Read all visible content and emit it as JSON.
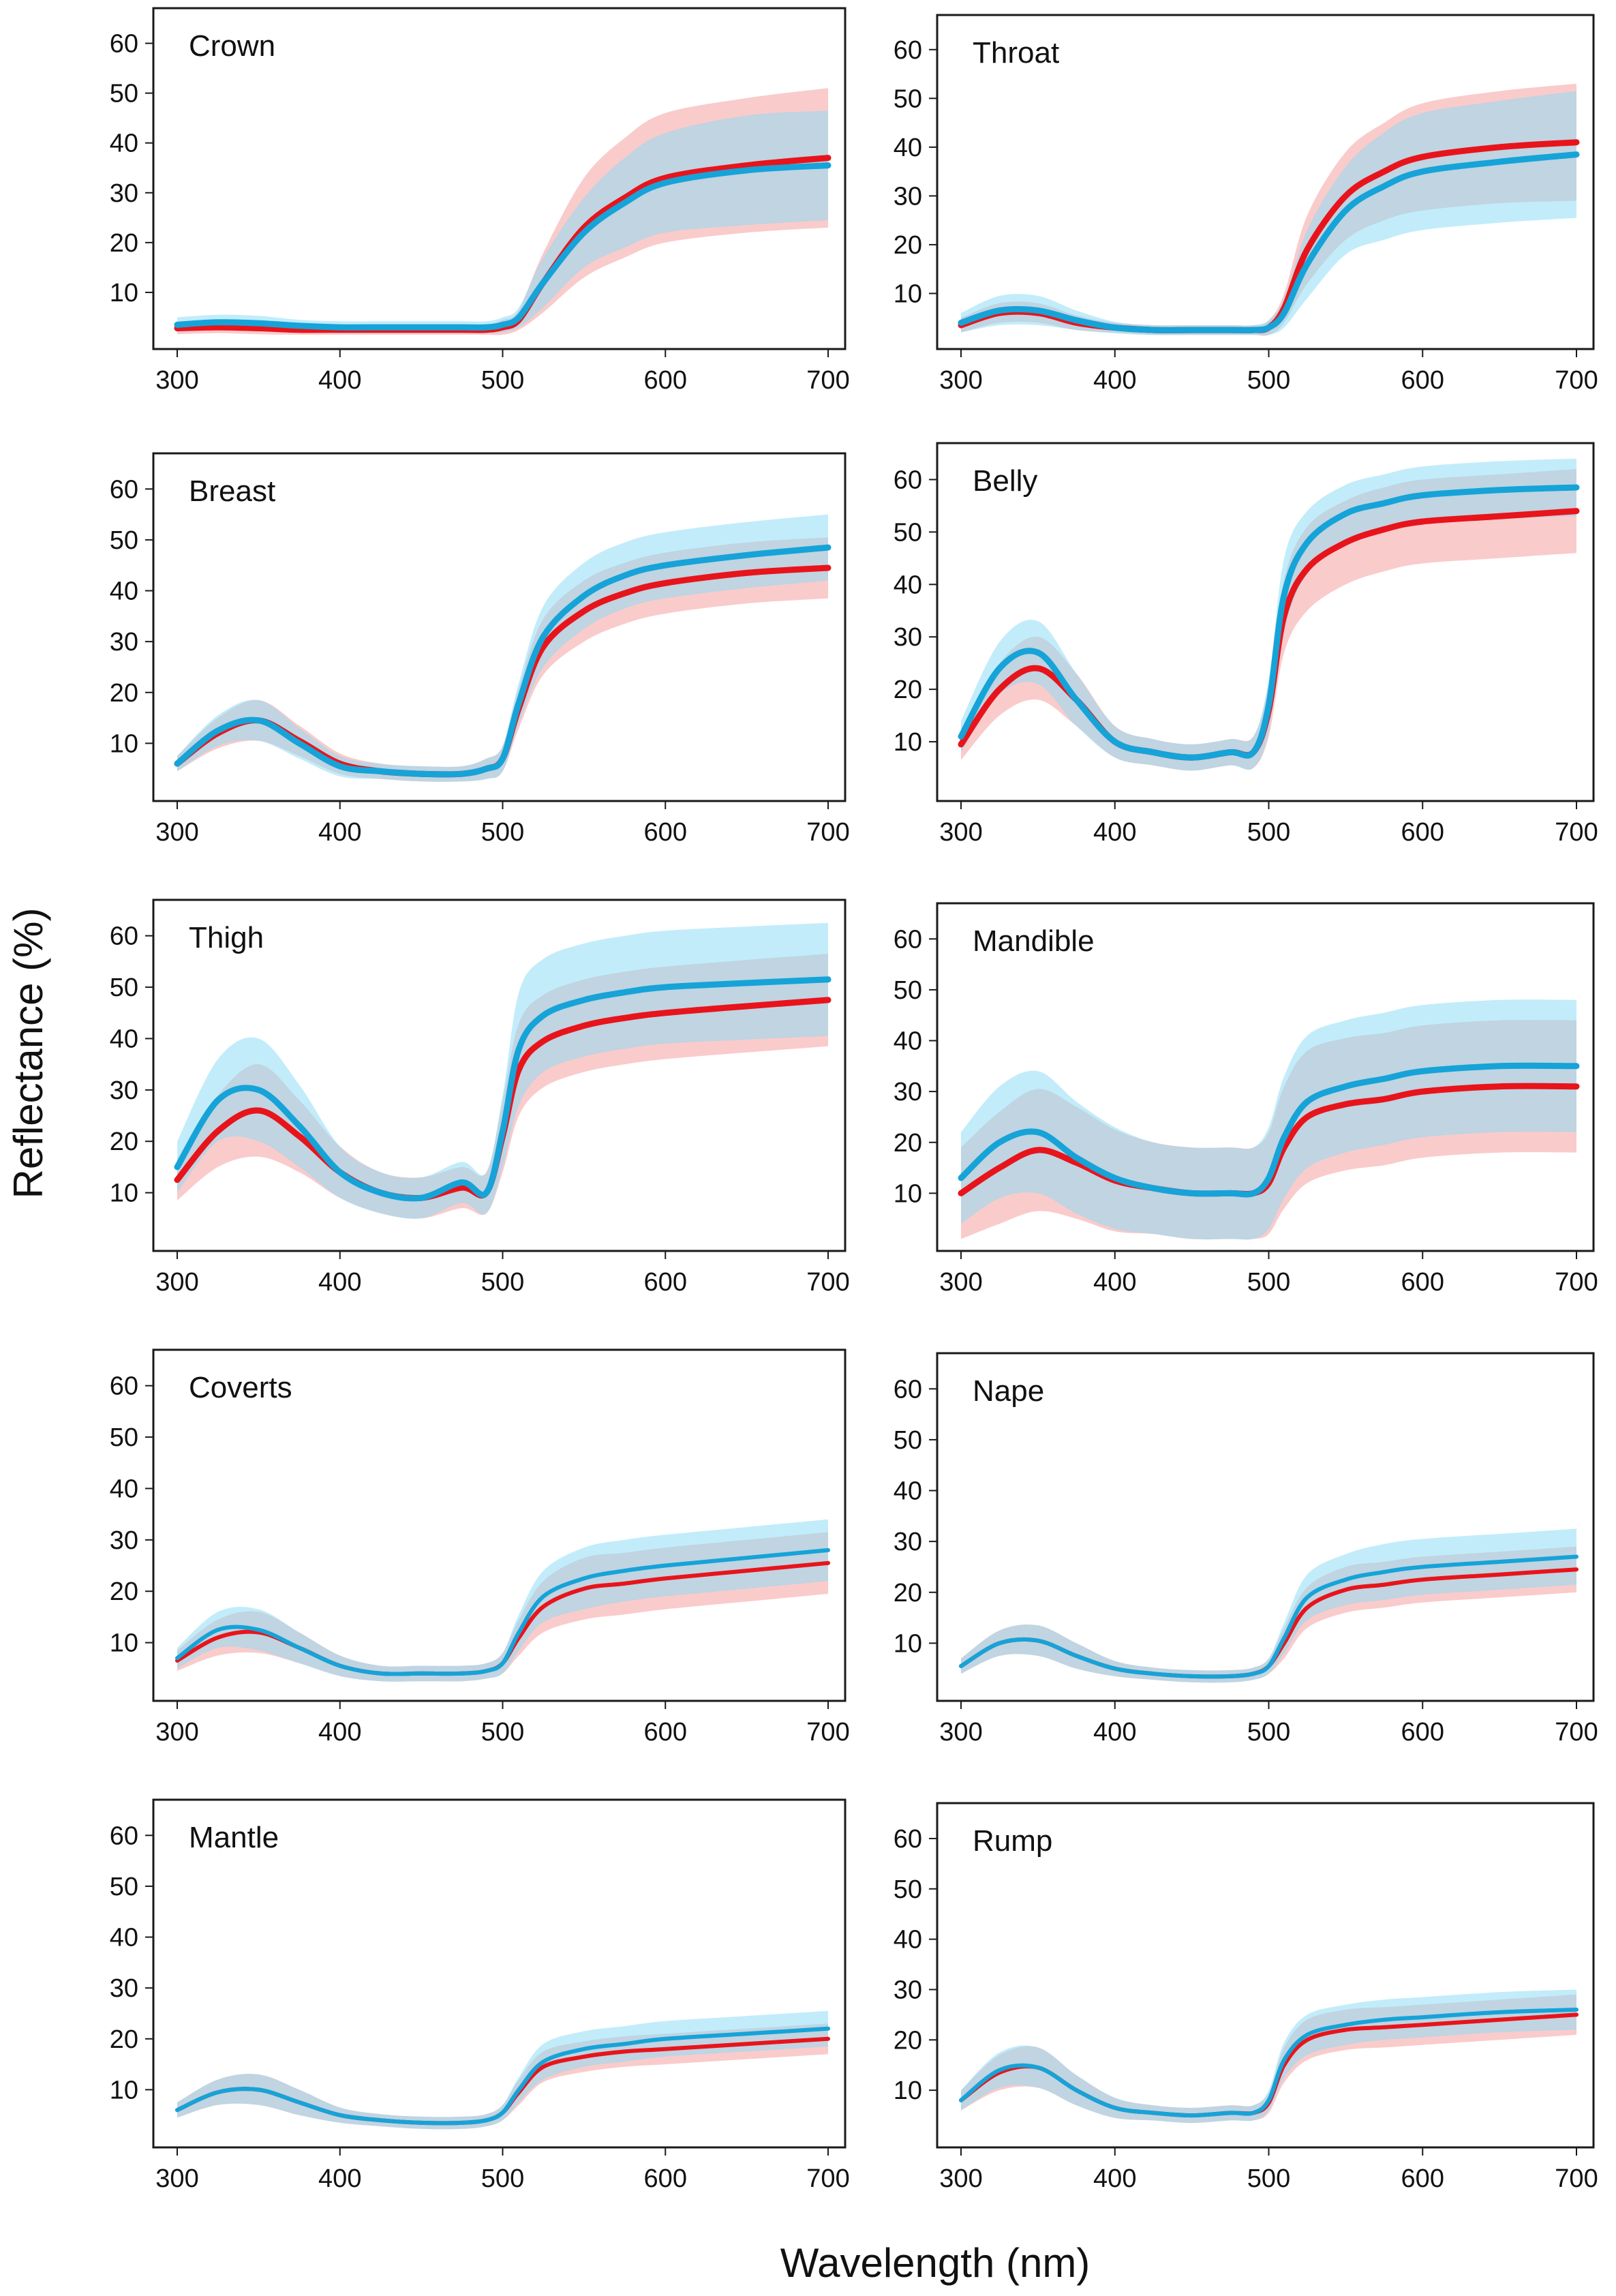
{
  "xlabel": "Wavelength (nm)",
  "ylabel": "Reflectance (%)",
  "chart_data": {
    "type": "line",
    "x_ticks": [
      300,
      400,
      500,
      600,
      700
    ],
    "y_ticks": [
      10,
      20,
      30,
      40,
      50,
      60
    ],
    "xlim": [
      300,
      700
    ],
    "ylim": [
      0,
      65
    ],
    "grid": false,
    "colors": {
      "red_line": "#e8141b",
      "red_band": "#f7a9a9",
      "blue_line": "#16a3d8",
      "blue_band": "#8fdcf5"
    },
    "x": [
      300,
      325,
      350,
      375,
      400,
      425,
      450,
      475,
      490,
      500,
      510,
      525,
      550,
      575,
      600,
      650,
      700
    ],
    "panels": [
      {
        "title": "Crown",
        "series": [
          {
            "color": "blue",
            "values": [
              3.5,
              4,
              3.8,
              3.3,
              3,
              3,
              3,
              3,
              3,
              3.5,
              5,
              12,
              22,
              28,
              32,
              34.5,
              35.5
            ],
            "band": [
              1.5,
              1.5,
              1.5,
              1.2,
              1.2,
              1.2,
              1.2,
              1.2,
              1.2,
              1.5,
              2,
              5,
              7,
              9,
              10,
              11,
              11
            ]
          },
          {
            "color": "red",
            "values": [
              2.8,
              3,
              2.8,
              2.5,
              2.5,
              2.5,
              2.5,
              2.5,
              2.5,
              3,
              4.5,
              12,
              23,
              29,
              33,
              35.5,
              37
            ],
            "band": [
              1.2,
              1.2,
              1.2,
              1,
              1,
              1,
              1,
              1,
              1,
              1.5,
              2,
              6,
              10,
              12,
              13,
              13.5,
              14
            ]
          }
        ]
      },
      {
        "title": "Throat",
        "series": [
          {
            "color": "blue",
            "values": [
              4,
              6.5,
              6.5,
              4.5,
              3,
              2.5,
              2.5,
              2.5,
              2.5,
              3,
              6,
              16,
              27,
              32,
              35,
              37,
              38.5
            ],
            "band": [
              2,
              3,
              3,
              2,
              1.2,
              1,
              1,
              1,
              1,
              1.5,
              3,
              7,
              9,
              11,
              12,
              12.5,
              13
            ]
          },
          {
            "color": "red",
            "values": [
              3.5,
              6,
              6,
              4,
              3,
              2.5,
              2.5,
              2.5,
              2.5,
              3,
              7,
              19,
              30,
              35,
              38,
              40,
              41
            ],
            "band": [
              1.5,
              2,
              2,
              1.5,
              1,
              1,
              1,
              1,
              1,
              1.5,
              3,
              7,
              9,
              10,
              11,
              11.5,
              12
            ]
          }
        ]
      },
      {
        "title": "Breast",
        "series": [
          {
            "color": "blue",
            "values": [
              6,
              12.5,
              14.5,
              10,
              5.5,
              4.5,
              4,
              4,
              5,
              7,
              18,
              31,
              39,
              43,
              45,
              47,
              48.5
            ],
            "band": [
              1.5,
              3,
              4,
              3,
              2,
              1.5,
              1.5,
              1.5,
              2,
              2.5,
              4,
              6,
              6.5,
              6.5,
              6.5,
              6.5,
              6.5
            ]
          },
          {
            "color": "red",
            "values": [
              6,
              12,
              14.5,
              10.5,
              6,
              4.5,
              4,
              4,
              5,
              7,
              17,
              29,
              36,
              39.5,
              41.5,
              43.5,
              44.5
            ],
            "band": [
              1.5,
              3,
              4,
              3,
              2,
              1.5,
              1.5,
              1.5,
              2,
              2.5,
              4,
              5.5,
              6,
              6,
              6,
              6,
              6
            ]
          }
        ]
      },
      {
        "title": "Belly",
        "series": [
          {
            "color": "blue",
            "values": [
              11,
              24,
              27,
              18,
              10,
              8,
              7,
              8,
              8,
              17,
              38,
              48,
              53.5,
              55.5,
              57,
              58,
              58.5
            ],
            "band": [
              3,
              5,
              6,
              5,
              3,
              2.5,
              2.5,
              2.5,
              3,
              5,
              7,
              6,
              5.5,
              5.5,
              5.5,
              5.5,
              5.5
            ]
          },
          {
            "color": "red",
            "values": [
              9.5,
              20,
              24,
              18,
              10,
              8,
              7,
              8,
              8,
              16,
              34,
              43,
              48,
              50.5,
              52,
              53,
              54
            ],
            "band": [
              3,
              5,
              6,
              5,
              3,
              2.5,
              2.5,
              2.5,
              3,
              5,
              7,
              8,
              8,
              8,
              8,
              8,
              8
            ]
          }
        ]
      },
      {
        "title": "Thigh",
        "series": [
          {
            "color": "blue",
            "values": [
              15,
              28,
              30,
              23,
              14,
              10,
              9,
              12,
              10,
              22,
              38,
              44.5,
              47.5,
              49,
              50,
              50.8,
              51.5
            ],
            "band": [
              5,
              8,
              10,
              8,
              5,
              4,
              4,
              4,
              4,
              7,
              11,
              11,
              11,
              11,
              11,
              11,
              11
            ]
          },
          {
            "color": "red",
            "values": [
              12.5,
              22,
              26,
              21,
              14,
              10,
              9,
              11,
              10,
              21,
              34,
              39.5,
              42.5,
              44,
              45,
              46.3,
              47.5
            ],
            "band": [
              4,
              7,
              9,
              7,
              5,
              4,
              4,
              4,
              4,
              7,
              9,
              9,
              9,
              9,
              9,
              9,
              9
            ]
          }
        ]
      },
      {
        "title": "Mandible",
        "series": [
          {
            "color": "blue",
            "values": [
              13,
              20,
              22,
              17,
              13,
              11,
              10,
              10,
              10,
              13,
              21,
              28,
              31,
              32.5,
              34,
              35,
              35
            ],
            "band": [
              9,
              11,
              12,
              11,
              10,
              9,
              9,
              9,
              9,
              10,
              12,
              13,
              13,
              13,
              13,
              13,
              13
            ]
          },
          {
            "color": "red",
            "values": [
              10,
              15,
              18.5,
              16,
              12.5,
              11,
              10,
              10,
              10,
              12,
              19,
              25,
              27.5,
              28.5,
              30,
              31,
              31
            ],
            "band": [
              9,
              11,
              12,
              11,
              10,
              9,
              9,
              9,
              9,
              10,
              12,
              13,
              13,
              13,
              13,
              13,
              13
            ]
          }
        ]
      },
      {
        "title": "Coverts",
        "series": [
          {
            "color": "blue",
            "values": [
              7,
              12.5,
              12.5,
              9,
              5.5,
              4,
              4,
              4,
              4.5,
              6,
              12,
              19,
              22.5,
              24,
              25,
              26.5,
              28
            ],
            "band": [
              2,
              3.5,
              4,
              3,
              2,
              1.5,
              1.5,
              1.5,
              1.5,
              2,
              3.5,
              5,
              6,
              6,
              6,
              6,
              6
            ]
          },
          {
            "color": "red",
            "values": [
              6.5,
              11,
              12,
              9,
              5.5,
              4,
              4,
              4,
              4.5,
              6,
              11,
              17,
              20.5,
              21.5,
              22.5,
              24,
              25.5
            ],
            "band": [
              2,
              3.5,
              4,
              3,
              2,
              1.5,
              1.5,
              1.5,
              1.5,
              2,
              3.5,
              5,
              6,
              6,
              6,
              6,
              6
            ]
          }
        ]
      },
      {
        "title": "Nape",
        "series": [
          {
            "color": "blue",
            "values": [
              5.5,
              10,
              10.5,
              7.5,
              5,
              4,
              3.5,
              3.5,
              4,
              5.5,
              11,
              19,
              22.5,
              24,
              25,
              26,
              27
            ],
            "band": [
              1.5,
              2.5,
              3,
              2.5,
              1.5,
              1.2,
              1.2,
              1.2,
              1.2,
              1.5,
              3,
              4.5,
              5,
              5.5,
              5.5,
              5.5,
              5.5
            ]
          },
          {
            "color": "red",
            "values": [
              5.5,
              10,
              10.5,
              7.5,
              5,
              4,
              3.5,
              3.5,
              4,
              5.5,
              10,
              17,
              20.5,
              21.5,
              22.5,
              23.5,
              24.5
            ],
            "band": [
              1.5,
              2.5,
              3,
              2.5,
              1.5,
              1.2,
              1.2,
              1.2,
              1.2,
              1.5,
              3,
              4,
              4.5,
              4.5,
              4.5,
              4.5,
              4.5
            ]
          }
        ]
      },
      {
        "title": "Mantle",
        "series": [
          {
            "color": "blue",
            "values": [
              6,
              9.5,
              10,
              7.5,
              5,
              4,
              3.5,
              3.5,
              4,
              5.5,
              10,
              15.5,
              18,
              19,
              20,
              21,
              22
            ],
            "band": [
              1.5,
              2.5,
              3,
              2.5,
              1.5,
              1.2,
              1.2,
              1.2,
              1.2,
              1.5,
              2.5,
              3.5,
              3.5,
              3.5,
              3.5,
              3.5,
              3.5
            ]
          },
          {
            "color": "red",
            "values": [
              6,
              9.5,
              10,
              7.5,
              5,
              4,
              3.5,
              3.5,
              4,
              5.5,
              9.5,
              14.5,
              16.5,
              17.5,
              18,
              19,
              20
            ],
            "band": [
              1.5,
              2.5,
              3,
              2.5,
              1.5,
              1.2,
              1.2,
              1.2,
              1.2,
              1.5,
              2.5,
              3,
              3,
              3,
              3,
              3,
              3
            ]
          }
        ]
      },
      {
        "title": "Rump",
        "series": [
          {
            "color": "blue",
            "values": [
              8,
              14,
              14.5,
              10,
              6.5,
              5.5,
              5,
              5.5,
              5.5,
              8,
              16,
              21,
              23,
              24,
              24.5,
              25.5,
              26
            ],
            "band": [
              2,
              3.5,
              4,
              3,
              2,
              1.5,
              1.5,
              1.5,
              1.5,
              2,
              3.5,
              4,
              4,
              4,
              4,
              4,
              4
            ]
          },
          {
            "color": "red",
            "values": [
              8,
              13.5,
              14.5,
              10,
              6.5,
              5.5,
              5,
              5.5,
              5.5,
              7.5,
              15,
              20,
              22,
              22.5,
              23,
              24,
              25
            ],
            "band": [
              2,
              3.5,
              4,
              3,
              2,
              1.5,
              1.5,
              1.5,
              1.5,
              2,
              3.5,
              4,
              4,
              4,
              4,
              4,
              4
            ]
          }
        ]
      }
    ]
  }
}
